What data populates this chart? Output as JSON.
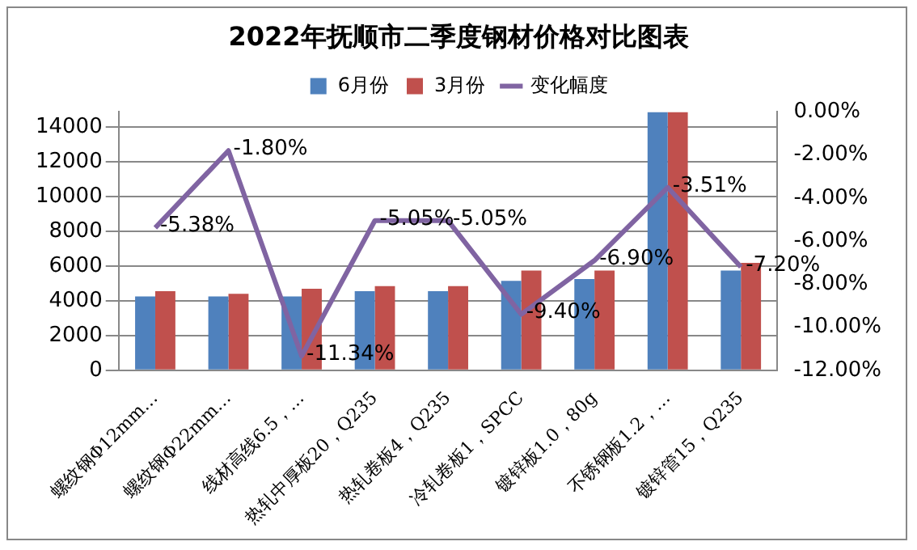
{
  "chart_data": {
    "type": "bar",
    "title": "2022年抚顺市二季度钢材价格对比图表",
    "categories": [
      "螺纹钢Φ12mm…",
      "螺纹钢Φ22mm…",
      "线材高线6.5，…",
      "热轧中厚板20，Q235",
      "热轧卷板4，Q235",
      "冷轧卷板1，SPCC",
      "镀锌板1.0，80g",
      "不锈钢板1.2，…",
      "镀锌管15，Q235"
    ],
    "series": [
      {
        "name": "6月份",
        "color": "#4f81bd",
        "values": [
          4250,
          4250,
          4250,
          4560,
          4560,
          5150,
          5250,
          14880,
          5740
        ]
      },
      {
        "name": "3月份",
        "color": "#c0504d",
        "values": [
          4560,
          4400,
          4700,
          4850,
          4850,
          5740,
          5740,
          14880,
          6180
        ]
      },
      {
        "name": "变化幅度",
        "type": "line",
        "axis": "y2",
        "color": "#8064a2",
        "values": [
          -5.38,
          -1.8,
          -11.34,
          -5.05,
          -5.05,
          -9.4,
          -6.9,
          -3.51,
          -7.2
        ],
        "value_labels": [
          "-5.38%",
          "-1.80%",
          "-11.34%",
          "-5.05%",
          "-5.05%",
          "-9.40%",
          "-6.90%",
          "-3.51%",
          "-7.20%"
        ]
      }
    ],
    "ylim": [
      0,
      14880
    ],
    "yticks": [
      0,
      2000,
      4000,
      6000,
      8000,
      10000,
      12000,
      14000
    ],
    "y2lim": [
      -12,
      0
    ],
    "y2ticks": [
      {
        "value": 0,
        "label": "0.00%"
      },
      {
        "value": -2,
        "label": "-2.00%"
      },
      {
        "value": -4,
        "label": "-4.00%"
      },
      {
        "value": -6,
        "label": "-6.00%"
      },
      {
        "value": -8,
        "label": "-8.00%"
      },
      {
        "value": -10,
        "label": "-10.00%"
      },
      {
        "value": -12,
        "label": "-12.00%"
      }
    ],
    "grid": "y",
    "legend": "top",
    "marker": "none"
  }
}
